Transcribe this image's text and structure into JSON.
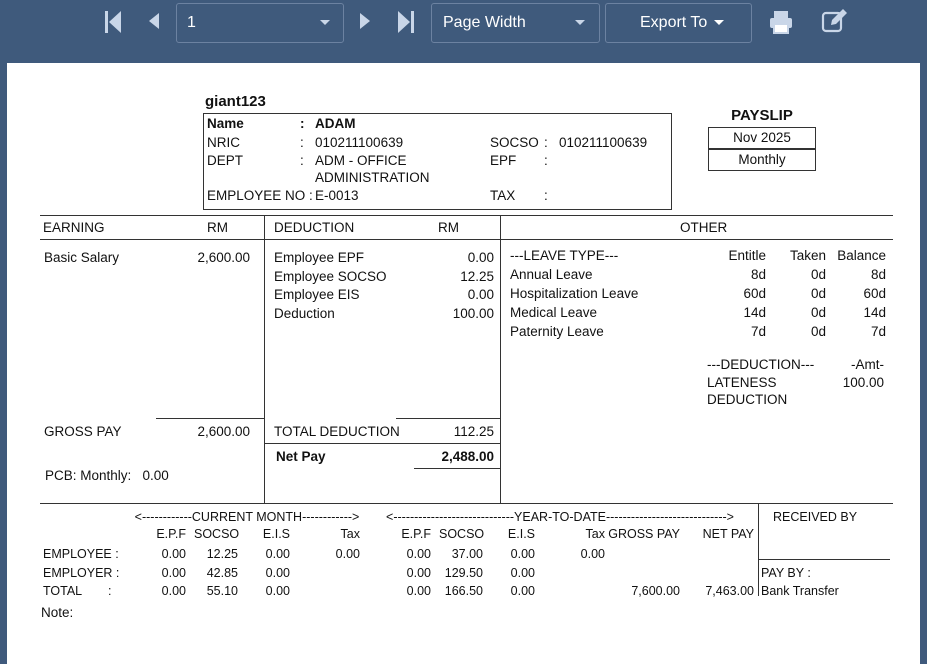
{
  "toolbar": {
    "page_value": "1",
    "zoom_value": "Page Width",
    "export_label": "Export To"
  },
  "payslip": {
    "company": "giant123",
    "title": "PAYSLIP",
    "period": "Nov 2025",
    "frequency": "Monthly",
    "employee": {
      "name_label": "Name",
      "name_colon": ":",
      "name_value": "ADAM",
      "nric_label": "NRIC",
      "nric_colon": ":",
      "nric_value": "010211100639",
      "dept_label": "DEPT",
      "dept_colon": ":",
      "dept_value_1": "ADM  - OFFICE",
      "dept_value_2": "ADMINISTRATION",
      "empno_label": "EMPLOYEE NO :",
      "empno_value": "E-0013",
      "socso_label": "SOCSO",
      "socso_colon": ":",
      "socso_value": "010211100639",
      "epf_label": "EPF",
      "epf_colon": ":",
      "tax_label": "TAX",
      "tax_colon": ":"
    },
    "headers": {
      "earning": "EARNING",
      "earning_rm": "RM",
      "deduction": "DEDUCTION",
      "deduction_rm": "RM",
      "other": "OTHER"
    },
    "earnings": [
      {
        "label": "Basic Salary",
        "amount": "2,600.00"
      }
    ],
    "deductions": [
      {
        "label": "Employee EPF",
        "amount": "0.00"
      },
      {
        "label": "Employee SOCSO",
        "amount": "12.25"
      },
      {
        "label": "Employee EIS",
        "amount": "0.00"
      },
      {
        "label": "Deduction",
        "amount": "100.00"
      }
    ],
    "leave": {
      "header": "---LEAVE TYPE---",
      "entitle": "Entitle",
      "taken": "Taken",
      "balance": "Balance",
      "rows": [
        {
          "type": "Annual Leave",
          "entitle": "8d",
          "taken": "0d",
          "balance": "8d"
        },
        {
          "type": "Hospitalization Leave",
          "entitle": "60d",
          "taken": "0d",
          "balance": "60d"
        },
        {
          "type": "Medical Leave",
          "entitle": "14d",
          "taken": "0d",
          "balance": "14d"
        },
        {
          "type": "Paternity Leave",
          "entitle": "7d",
          "taken": "0d",
          "balance": "7d"
        }
      ]
    },
    "other_deduction": {
      "header": "---DEDUCTION---",
      "amt_header": "-Amt-",
      "label_1": "LATENESS",
      "label_2": "DEDUCTION",
      "amount": "100.00"
    },
    "gross_pay_label": "GROSS PAY",
    "gross_pay": "2,600.00",
    "total_deduction_label": "TOTAL DEDUCTION",
    "total_deduction": "112.25",
    "net_pay_label": "Net Pay",
    "net_pay": "2,488.00",
    "pcb": "PCB: Monthly:   0.00",
    "bottom": {
      "current_month_header": "<------------CURRENT MONTH------------>",
      "ytd_header": "<-----------------------------YEAR-TO-DATE----------------------------->",
      "cols": {
        "epf": "E.P.F",
        "socso": "SOCSO",
        "eis": "E.I.S",
        "tax": "Tax",
        "gross": "GROSS PAY",
        "net": "NET PAY"
      },
      "employee": {
        "label": "EMPLOYEE :",
        "epf": "0.00",
        "socso": "12.25",
        "eis": "0.00",
        "tax": "0.00",
        "y_epf": "0.00",
        "y_socso": "37.00",
        "y_eis": "0.00",
        "y_tax": "0.00"
      },
      "employer": {
        "label": "EMPLOYER :",
        "epf": "0.00",
        "socso": "42.85",
        "eis": "0.00",
        "y_epf": "0.00",
        "y_socso": "129.50",
        "y_eis": "0.00"
      },
      "total": {
        "label": "TOTAL",
        "colon": ":",
        "epf": "0.00",
        "socso": "55.10",
        "eis": "0.00",
        "y_epf": "0.00",
        "y_socso": "166.50",
        "y_eis": "0.00",
        "y_gross": "7,600.00",
        "y_net": "7,463.00"
      },
      "received_by": "RECEIVED BY",
      "pay_by_label": "PAY BY :",
      "pay_by_value": "Bank Transfer",
      "note": "Note:"
    }
  }
}
